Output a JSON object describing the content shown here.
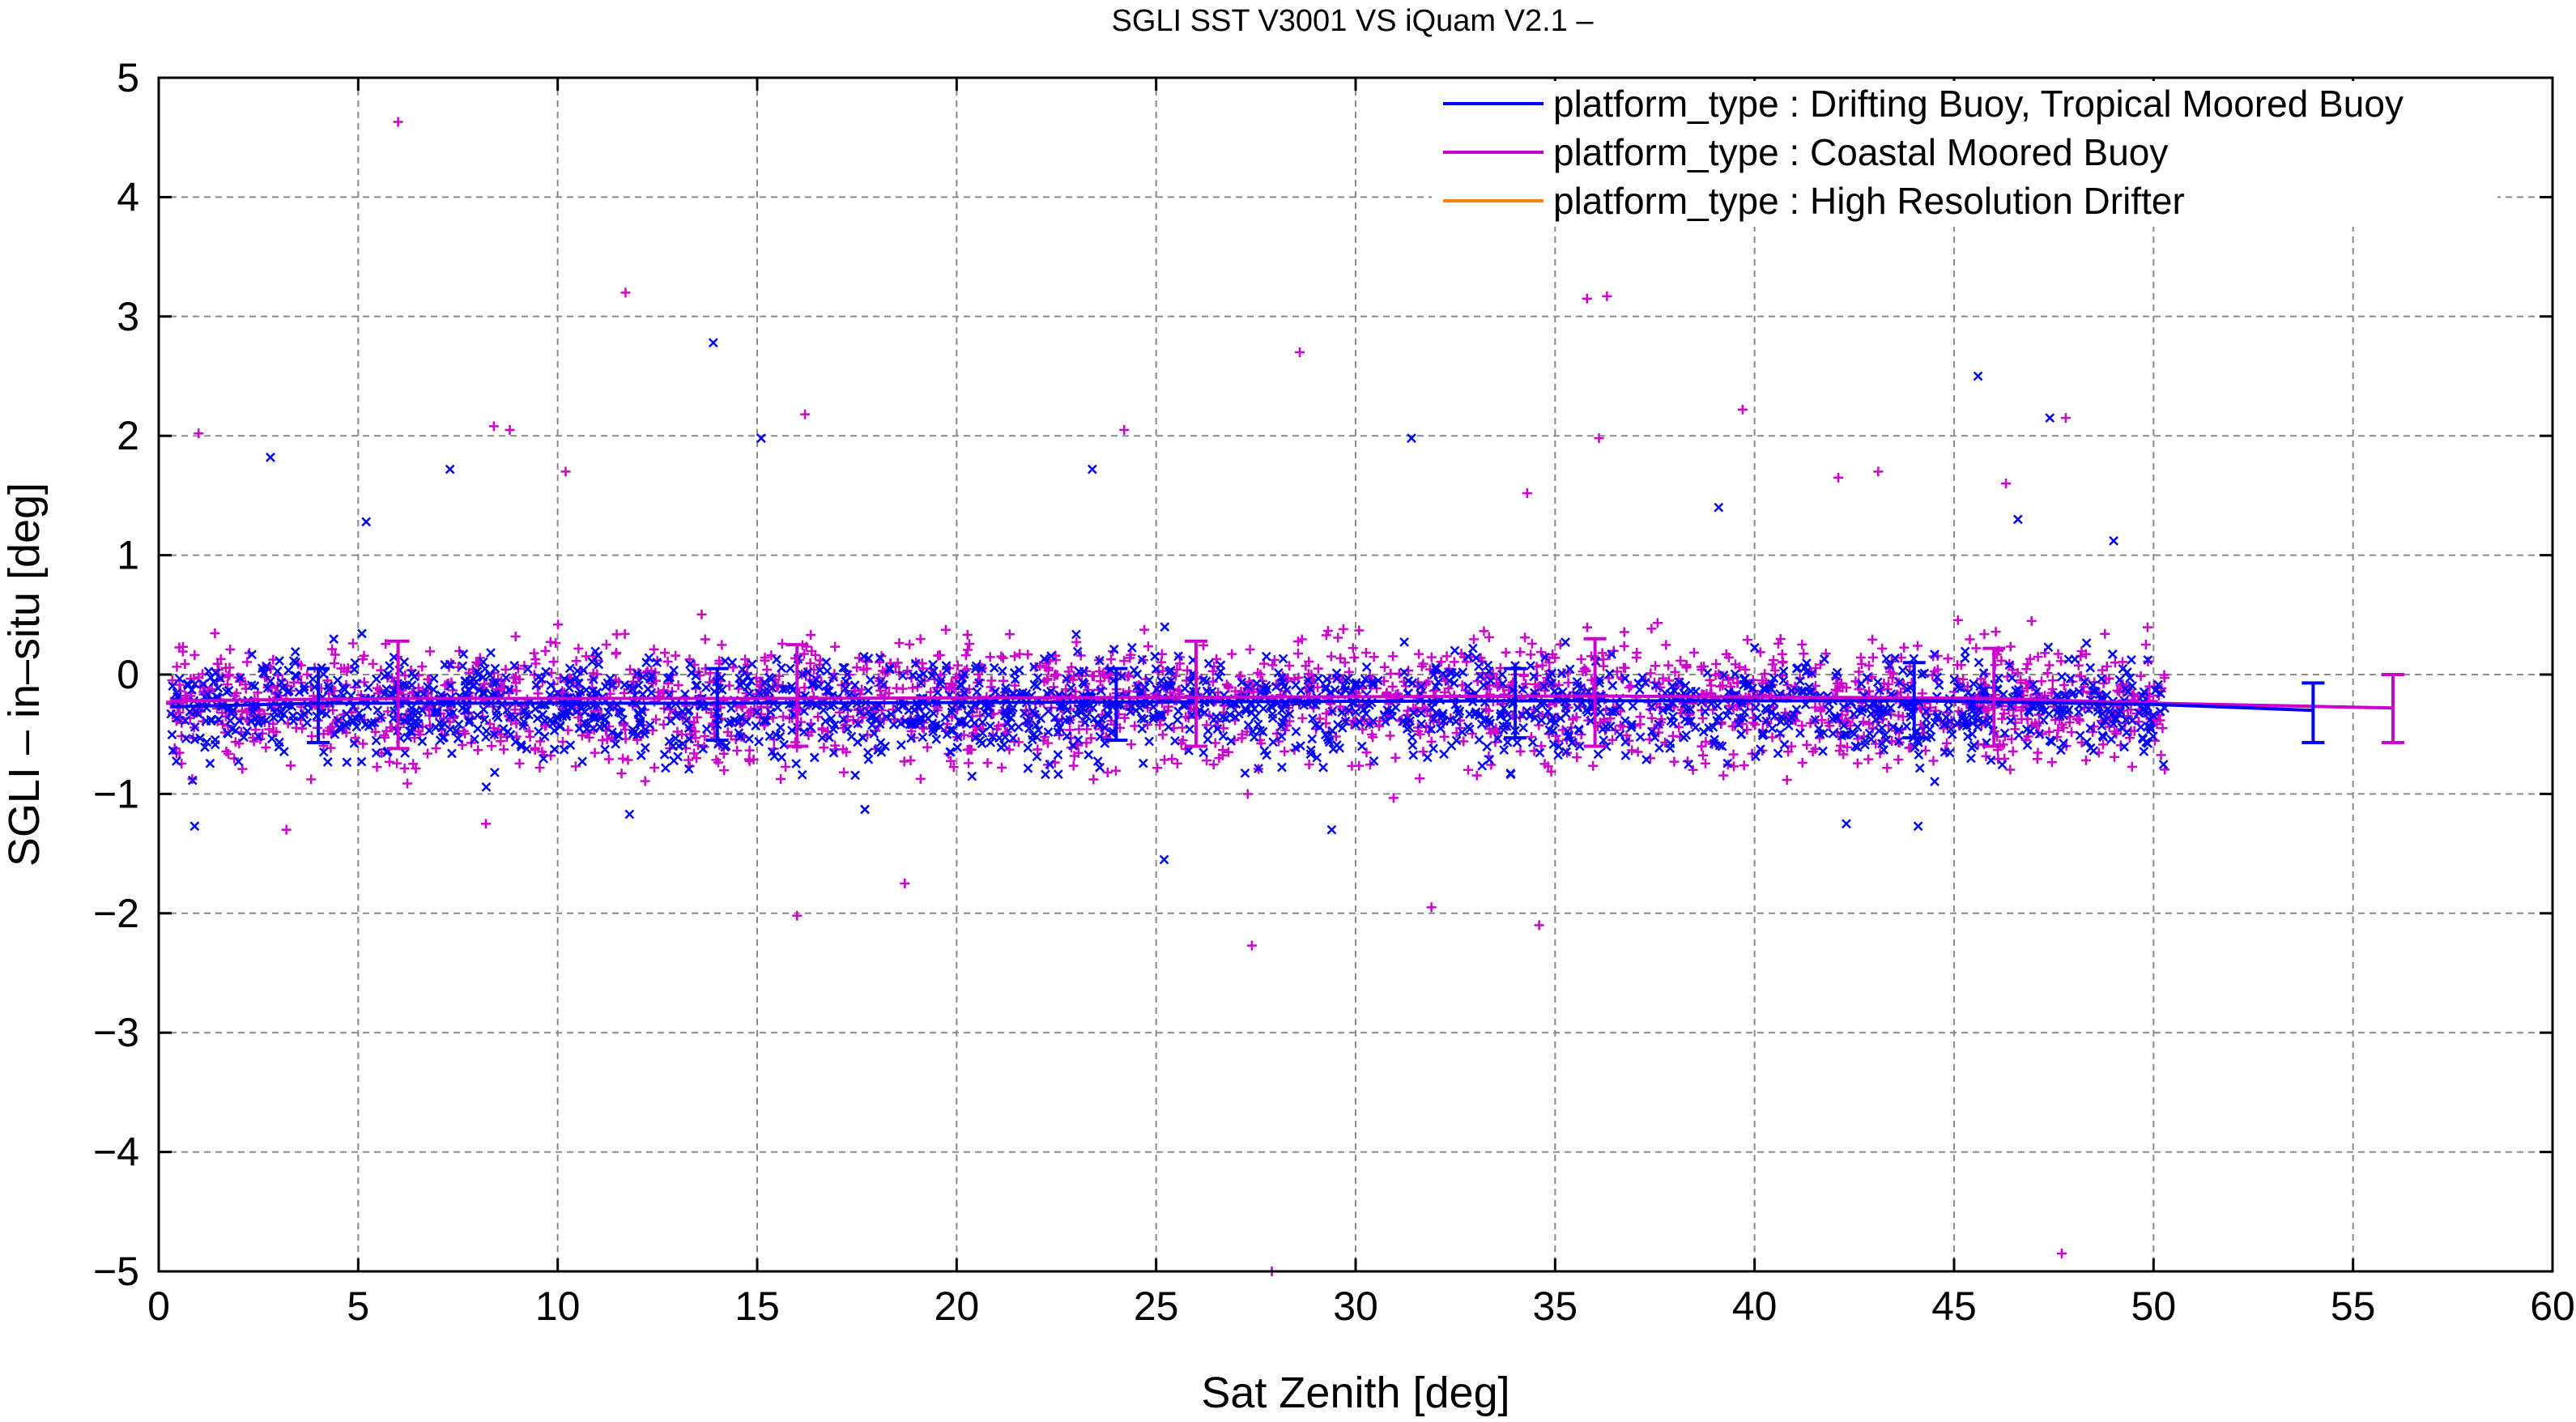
{
  "chart_data": {
    "type": "scatter",
    "title": "SGLI SST V3001 VS iQuam V2.1  –",
    "xlabel": "Sat Zenith [deg]",
    "ylabel": "SGLI – in–situ [deg]",
    "xlim": [
      0,
      60
    ],
    "ylim": [
      -5,
      5
    ],
    "x_ticks": [
      "0",
      "5",
      "10",
      "15",
      "20",
      "25",
      "30",
      "35",
      "40",
      "45",
      "50",
      "55",
      "60"
    ],
    "y_ticks": [
      "5",
      "4",
      "3",
      "2",
      "1",
      "0",
      "−1",
      "−2",
      "−3",
      "−4",
      "−5"
    ],
    "grid": true,
    "legend_position": "top-right",
    "series": [
      {
        "name": "platform_type : Drifting Buoy, Tropical Moored Buoy",
        "color": "#0000ff",
        "marker": "x",
        "mean_line": {
          "x": [
            0.3,
            4,
            14,
            24,
            34,
            44,
            50,
            54
          ],
          "y": [
            -0.27,
            -0.24,
            -0.24,
            -0.23,
            -0.22,
            -0.22,
            -0.25,
            -0.3
          ]
        },
        "error_bars": [
          {
            "x": 4,
            "low": -0.57,
            "high": 0.05
          },
          {
            "x": 14,
            "low": -0.55,
            "high": 0.05
          },
          {
            "x": 24,
            "low": -0.55,
            "high": 0.05
          },
          {
            "x": 34,
            "low": -0.53,
            "high": 0.05
          },
          {
            "x": 44,
            "low": -0.53,
            "high": 0.1
          },
          {
            "x": 54,
            "low": -0.57,
            "high": -0.07
          }
        ],
        "outliers": [
          {
            "x": 2.8,
            "y": 1.82
          },
          {
            "x": 5.2,
            "y": 1.28
          },
          {
            "x": 7.3,
            "y": 1.72
          },
          {
            "x": 13.9,
            "y": 2.78
          },
          {
            "x": 15.1,
            "y": 1.98
          },
          {
            "x": 23.4,
            "y": 1.72
          },
          {
            "x": 31.4,
            "y": 1.98
          },
          {
            "x": 39.1,
            "y": 1.4
          },
          {
            "x": 45.6,
            "y": 2.5
          },
          {
            "x": 46.6,
            "y": 1.3
          },
          {
            "x": 47.4,
            "y": 2.15
          },
          {
            "x": 49.0,
            "y": 1.12
          },
          {
            "x": 0.9,
            "y": -1.27
          },
          {
            "x": 11.8,
            "y": -1.17
          },
          {
            "x": 17.7,
            "y": -1.13
          },
          {
            "x": 25.2,
            "y": -1.55
          },
          {
            "x": 29.4,
            "y": -1.3
          },
          {
            "x": 44.1,
            "y": -1.27
          },
          {
            "x": 42.3,
            "y": -1.25
          }
        ]
      },
      {
        "name": "platform_type : Coastal Moored Buoy",
        "color": "#cc00cc",
        "marker": "+",
        "mean_line": {
          "x": [
            0.3,
            6,
            16,
            26,
            36,
            46,
            50,
            56
          ],
          "y": [
            -0.22,
            -0.2,
            -0.2,
            -0.19,
            -0.18,
            -0.2,
            -0.24,
            -0.28
          ]
        },
        "error_bars": [
          {
            "x": 6,
            "low": -0.62,
            "high": 0.28
          },
          {
            "x": 16,
            "low": -0.6,
            "high": 0.25
          },
          {
            "x": 26,
            "low": -0.6,
            "high": 0.28
          },
          {
            "x": 36,
            "low": -0.6,
            "high": 0.3
          },
          {
            "x": 46,
            "low": -0.6,
            "high": 0.22
          },
          {
            "x": 56,
            "low": -0.57,
            "high": 0.0
          }
        ],
        "outliers": [
          {
            "x": 6.0,
            "y": 4.63
          },
          {
            "x": 11.7,
            "y": 3.2
          },
          {
            "x": 35.8,
            "y": 3.15
          },
          {
            "x": 36.3,
            "y": 3.17
          },
          {
            "x": 28.6,
            "y": 2.7
          },
          {
            "x": 1.0,
            "y": 2.02
          },
          {
            "x": 8.4,
            "y": 2.08
          },
          {
            "x": 8.8,
            "y": 2.05
          },
          {
            "x": 16.2,
            "y": 2.18
          },
          {
            "x": 24.2,
            "y": 2.05
          },
          {
            "x": 39.7,
            "y": 2.22
          },
          {
            "x": 47.8,
            "y": 2.15
          },
          {
            "x": 36.1,
            "y": 1.98
          },
          {
            "x": 10.2,
            "y": 1.7
          },
          {
            "x": 43.1,
            "y": 1.7
          },
          {
            "x": 42.1,
            "y": 1.65
          },
          {
            "x": 34.3,
            "y": 1.52
          },
          {
            "x": 46.3,
            "y": 1.6
          },
          {
            "x": 16.0,
            "y": -2.02
          },
          {
            "x": 18.7,
            "y": -1.75
          },
          {
            "x": 27.4,
            "y": -2.27
          },
          {
            "x": 31.9,
            "y": -1.95
          },
          {
            "x": 34.6,
            "y": -2.1
          },
          {
            "x": 47.7,
            "y": -4.85
          },
          {
            "x": 27.9,
            "y": -5.0
          },
          {
            "x": 3.2,
            "y": -1.3
          },
          {
            "x": 8.2,
            "y": -1.25
          }
        ]
      },
      {
        "name": "platform_type : High Resolution Drifter",
        "color": "#ff8000",
        "marker": "line"
      }
    ]
  }
}
